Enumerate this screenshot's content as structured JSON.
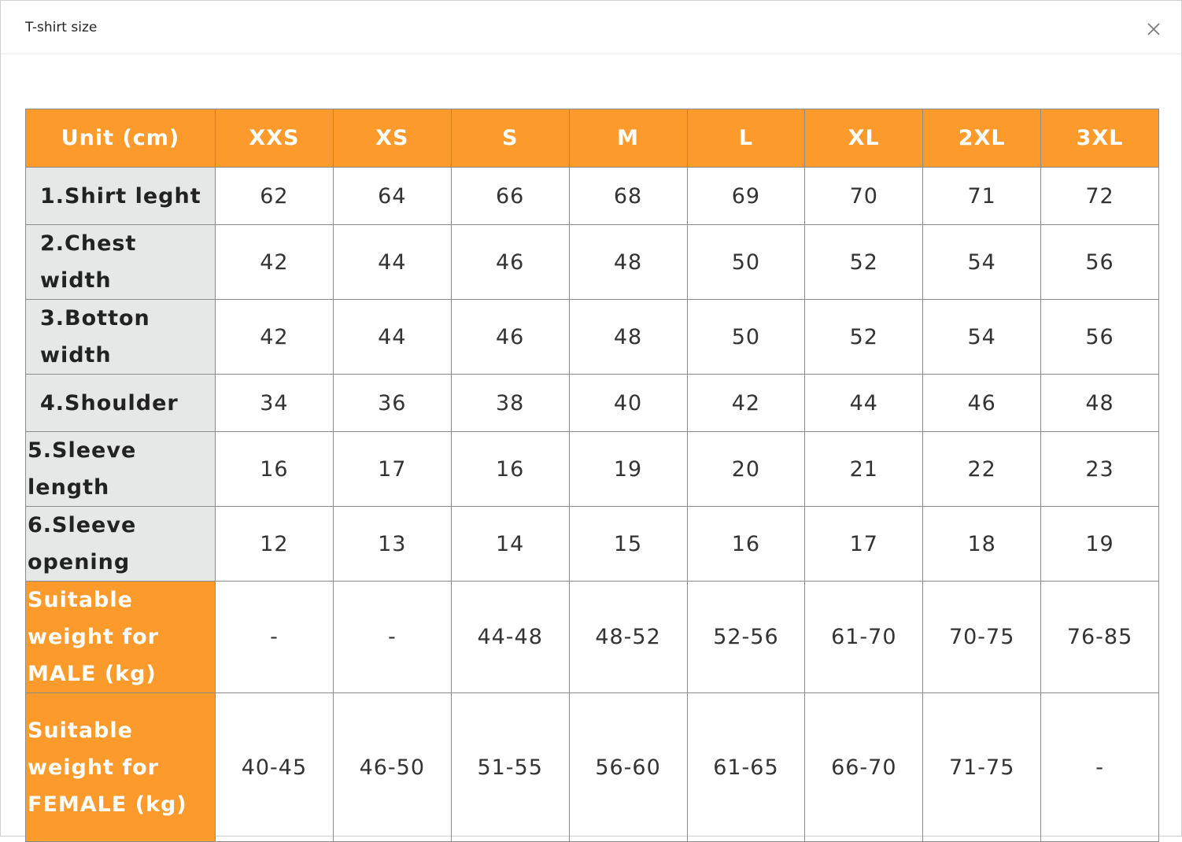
{
  "header": {
    "title": "T-shirt size"
  },
  "table": {
    "columns": [
      "Unit (cm)",
      "XXS",
      "XS",
      "S",
      "M",
      "L",
      "XL",
      "2XL",
      "3XL"
    ],
    "rows": [
      [
        "1.Shirt leght",
        62,
        64,
        66,
        68,
        69,
        70,
        71,
        72
      ],
      [
        "2.Chest width",
        42,
        44,
        46,
        48,
        50,
        52,
        54,
        56
      ],
      [
        "3.Botton width",
        42,
        44,
        46,
        48,
        50,
        52,
        54,
        56
      ],
      [
        "4.Shoulder",
        34,
        36,
        38,
        40,
        42,
        44,
        46,
        48
      ],
      [
        "5.Sleeve length",
        16,
        17,
        16,
        19,
        20,
        21,
        22,
        23
      ],
      [
        "6.Sleeve opening",
        12,
        13,
        14,
        15,
        16,
        17,
        18,
        19
      ],
      [
        "Suitable weight for MALE (kg)",
        "-",
        "-",
        "44-48",
        "48-52",
        "52-56",
        "61-70",
        "70-75",
        "76-85"
      ],
      [
        "Suitable weight for FEMALE (kg)",
        "40-45",
        "46-50",
        "51-55",
        "56-60",
        "61-65",
        "66-70",
        "71-75",
        "-"
      ]
    ]
  }
}
